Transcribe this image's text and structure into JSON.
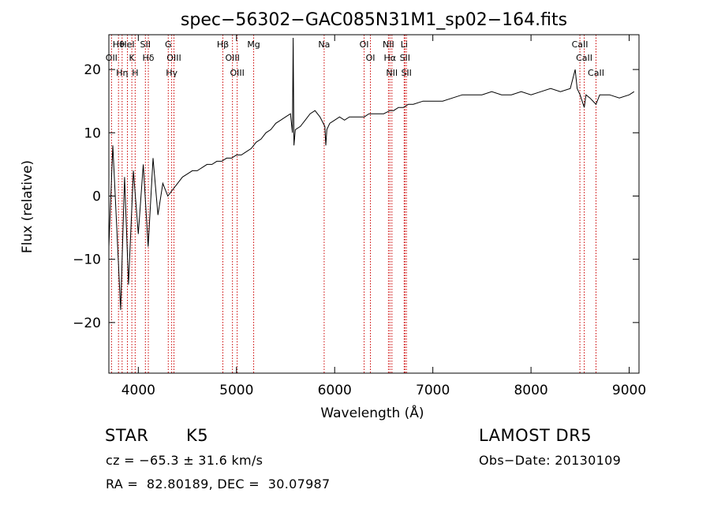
{
  "chart_data": {
    "type": "line",
    "title": "spec−56302−GAC085N31M1_sp02−164.fits",
    "xlabel": "Wavelength (Å)",
    "ylabel": "Flux (relative)",
    "xlim": [
      3700,
      9100
    ],
    "ylim": [
      -28,
      25.5
    ],
    "xticks": [
      4000,
      5000,
      6000,
      7000,
      8000,
      9000
    ],
    "xtick_labels": [
      "4000",
      "5000",
      "6000",
      "7000",
      "8000",
      "9000"
    ],
    "yticks": [
      -20,
      -10,
      0,
      10,
      20
    ],
    "ytick_labels": [
      "−20",
      "−10",
      "0",
      "10",
      "20"
    ],
    "grid": false,
    "series": [
      {
        "x": [
          3700,
          3740,
          3780,
          3820,
          3860,
          3900,
          3950,
          4000,
          4050,
          4100,
          4150,
          4200,
          4250,
          4300,
          4350,
          4400,
          4450,
          4500,
          4550,
          4600,
          4650,
          4700,
          4750,
          4800,
          4850,
          4900,
          4950,
          5000,
          5050,
          5100,
          5150,
          5200,
          5250,
          5300,
          5350,
          5400,
          5450,
          5500,
          5550,
          5570,
          5577,
          5585,
          5600,
          5650,
          5700,
          5750,
          5800,
          5850,
          5900,
          5910,
          5920,
          5950,
          6000,
          6050,
          6100,
          6150,
          6200,
          6250,
          6300,
          6350,
          6400,
          6450,
          6500,
          6563,
          6600,
          6650,
          6700,
          6750,
          6800,
          6900,
          7000,
          7100,
          7200,
          7300,
          7400,
          7500,
          7600,
          7700,
          7800,
          7900,
          8000,
          8100,
          8200,
          8300,
          8400,
          8450,
          8470,
          8500,
          8542,
          8560,
          8600,
          8662,
          8700,
          8800,
          8900,
          9000,
          9050
        ],
        "y": [
          -8,
          8,
          -5,
          -18,
          3,
          -14,
          4,
          -6,
          5,
          -8,
          6,
          -3,
          2,
          0,
          1,
          2,
          3,
          3.5,
          4,
          4,
          4.5,
          5,
          5,
          5.5,
          5.5,
          6,
          6,
          6.5,
          6.5,
          7,
          7.5,
          8.5,
          9,
          10,
          10.5,
          11.5,
          12,
          12.5,
          13,
          10,
          25,
          8,
          10.5,
          11,
          12,
          13,
          13.5,
          12.5,
          11,
          8,
          10.5,
          11.5,
          12,
          12.5,
          12,
          12.5,
          12.5,
          12.5,
          12.5,
          13,
          13,
          13,
          13,
          13.5,
          13.5,
          14,
          14,
          14.5,
          14.5,
          15,
          15,
          15,
          15.5,
          16,
          16,
          16,
          16.5,
          16,
          16,
          16.5,
          16,
          16.5,
          17,
          16.5,
          17,
          20,
          17,
          16,
          14,
          16,
          15.5,
          14.5,
          16,
          16,
          15.5,
          16,
          16.5
        ]
      }
    ],
    "lines": [
      {
        "label": "Hθ",
        "x": 3798
      },
      {
        "label": "OII",
        "x": 3727
      },
      {
        "label": "Hη",
        "x": 3835
      },
      {
        "label": "HeI",
        "x": 3889
      },
      {
        "label": "K",
        "x": 3934
      },
      {
        "label": "H",
        "x": 3968
      },
      {
        "label": "SII",
        "x": 4072
      },
      {
        "label": "Hδ",
        "x": 4102
      },
      {
        "label": "G",
        "x": 4305
      },
      {
        "label": "OIII",
        "x": 4363
      },
      {
        "label": "Hγ",
        "x": 4340
      },
      {
        "label": "Hβ",
        "x": 4861
      },
      {
        "label": "OIII",
        "x": 4959
      },
      {
        "label": "OIII",
        "x": 5007
      },
      {
        "label": "Mg",
        "x": 5175
      },
      {
        "label": "Na",
        "x": 5893
      },
      {
        "label": "OI",
        "x": 6300
      },
      {
        "label": "OI",
        "x": 6364
      },
      {
        "label": "NII",
        "x": 6548
      },
      {
        "label": "Hα",
        "x": 6563
      },
      {
        "label": "NII",
        "x": 6583
      },
      {
        "label": "Li",
        "x": 6708
      },
      {
        "label": "SII",
        "x": 6716
      },
      {
        "label": "SII",
        "x": 6731
      },
      {
        "label": "CaII",
        "x": 8498
      },
      {
        "label": "CaII",
        "x": 8542
      },
      {
        "label": "CaII",
        "x": 8662
      }
    ]
  },
  "info": {
    "object_class": "STAR",
    "subclass": "K5",
    "survey": "LAMOST DR5",
    "redshift": "cz = −65.3 ± 31.6 km/s",
    "obs_date": "Obs−Date: 20130109",
    "coords": "RA =  82.80189, DEC =  30.07987"
  }
}
